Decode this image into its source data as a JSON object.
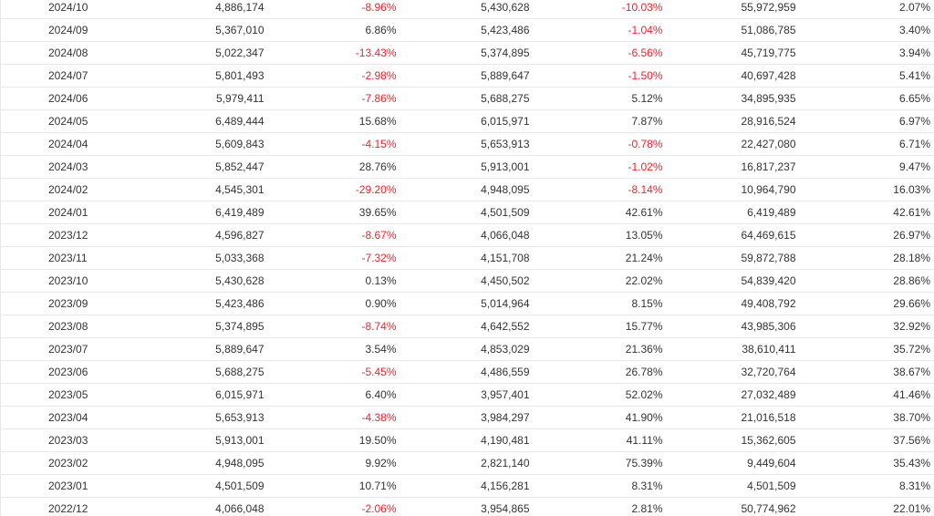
{
  "table": {
    "rows": [
      [
        "2024/10",
        "4,886,174",
        "-8.96%",
        "5,430,628",
        "-10.03%",
        "55,972,959",
        "2.07%"
      ],
      [
        "2024/09",
        "5,367,010",
        "6.86%",
        "5,423,486",
        "-1.04%",
        "51,086,785",
        "3.40%"
      ],
      [
        "2024/08",
        "5,022,347",
        "-13.43%",
        "5,374,895",
        "-6.56%",
        "45,719,775",
        "3.94%"
      ],
      [
        "2024/07",
        "5,801,493",
        "-2.98%",
        "5,889,647",
        "-1.50%",
        "40,697,428",
        "5.41%"
      ],
      [
        "2024/06",
        "5,979,411",
        "-7.86%",
        "5,688,275",
        "5.12%",
        "34,895,935",
        "6.65%"
      ],
      [
        "2024/05",
        "6,489,444",
        "15.68%",
        "6,015,971",
        "7.87%",
        "28,916,524",
        "6.97%"
      ],
      [
        "2024/04",
        "5,609,843",
        "-4.15%",
        "5,653,913",
        "-0.78%",
        "22,427,080",
        "6.71%"
      ],
      [
        "2024/03",
        "5,852,447",
        "28.76%",
        "5,913,001",
        "-1.02%",
        "16,817,237",
        "9.47%"
      ],
      [
        "2024/02",
        "4,545,301",
        "-29.20%",
        "4,948,095",
        "-8.14%",
        "10,964,790",
        "16.03%"
      ],
      [
        "2024/01",
        "6,419,489",
        "39.65%",
        "4,501,509",
        "42.61%",
        "6,419,489",
        "42.61%"
      ],
      [
        "2023/12",
        "4,596,827",
        "-8.67%",
        "4,066,048",
        "13.05%",
        "64,469,615",
        "26.97%"
      ],
      [
        "2023/11",
        "5,033,368",
        "-7.32%",
        "4,151,708",
        "21.24%",
        "59,872,788",
        "28.18%"
      ],
      [
        "2023/10",
        "5,430,628",
        "0.13%",
        "4,450,502",
        "22.02%",
        "54,839,420",
        "28.86%"
      ],
      [
        "2023/09",
        "5,423,486",
        "0.90%",
        "5,014,964",
        "8.15%",
        "49,408,792",
        "29.66%"
      ],
      [
        "2023/08",
        "5,374,895",
        "-8.74%",
        "4,642,552",
        "15.77%",
        "43,985,306",
        "32.92%"
      ],
      [
        "2023/07",
        "5,889,647",
        "3.54%",
        "4,853,029",
        "21.36%",
        "38,610,411",
        "35.72%"
      ],
      [
        "2023/06",
        "5,688,275",
        "-5.45%",
        "4,486,559",
        "26.78%",
        "32,720,764",
        "38.67%"
      ],
      [
        "2023/05",
        "6,015,971",
        "6.40%",
        "3,957,401",
        "52.02%",
        "27,032,489",
        "41.46%"
      ],
      [
        "2023/04",
        "5,653,913",
        "-4.38%",
        "3,984,297",
        "41.90%",
        "21,016,518",
        "38.70%"
      ],
      [
        "2023/03",
        "5,913,001",
        "19.50%",
        "4,190,481",
        "41.11%",
        "15,362,605",
        "37.56%"
      ],
      [
        "2023/02",
        "4,948,095",
        "9.92%",
        "2,821,140",
        "75.39%",
        "9,449,604",
        "35.43%"
      ],
      [
        "2023/01",
        "4,501,509",
        "10.71%",
        "4,156,281",
        "8.31%",
        "4,501,509",
        "8.31%"
      ],
      [
        "2022/12",
        "4,066,048",
        "-2.06%",
        "3,954,865",
        "2.81%",
        "50,774,962",
        "22.01%"
      ]
    ]
  },
  "colors": {
    "negative": "#f5222d",
    "text": "#333333",
    "border": "#e8e8e8"
  }
}
